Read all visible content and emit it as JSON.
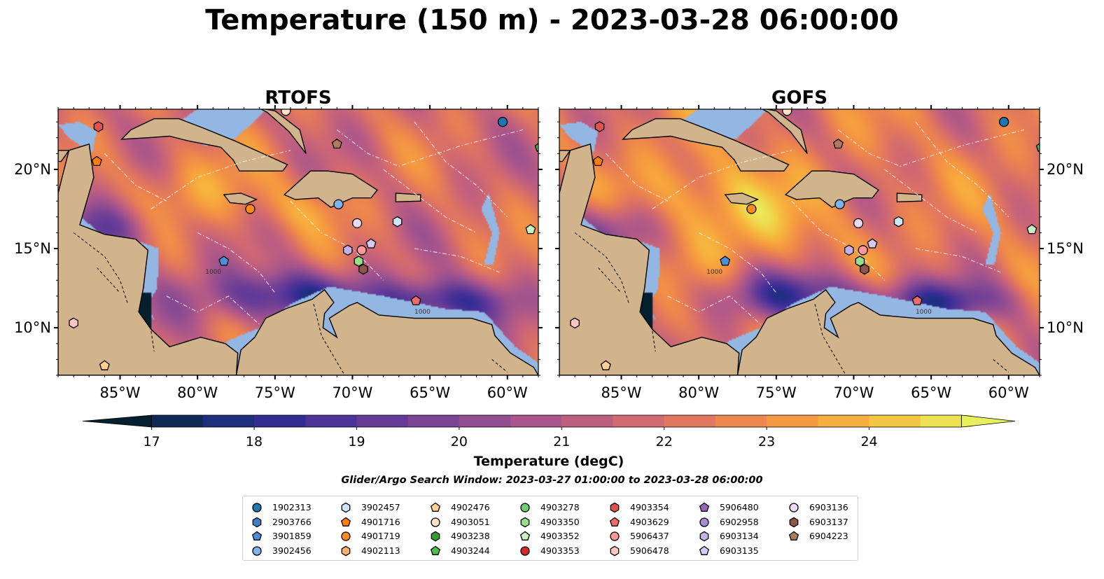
{
  "title": "Temperature (150 m) - 2023-03-28 06:00:00",
  "panels": [
    {
      "title": "RTOFS",
      "variant": "rtofs"
    },
    {
      "title": "GOFS",
      "variant": "gofs"
    }
  ],
  "colors": {
    "land": "#d2b48c",
    "shallow": "#94b6e2",
    "colormap": [
      "#04202f",
      "#0d2a54",
      "#1b2e7a",
      "#312d93",
      "#4a3298",
      "#623a97",
      "#774394",
      "#8d4c92",
      "#a3548d",
      "#b95c84",
      "#cc6676",
      "#dc7264",
      "#ea8152",
      "#f39244",
      "#f7a63e",
      "#f5bc3e",
      "#f0d549",
      "#e8ef5e"
    ]
  },
  "chart_data": {
    "type": "heatmap",
    "title": "Temperature (150 m) - 2023-03-28 06:00:00",
    "panels": [
      "RTOFS",
      "GOFS"
    ],
    "x_ticks": [
      "85°W",
      "80°W",
      "75°W",
      "70°W",
      "65°W",
      "60°W"
    ],
    "x_tick_values": [
      -85,
      -80,
      -75,
      -70,
      -65,
      -60
    ],
    "y_ticks": [
      "20°N",
      "15°N",
      "10°N"
    ],
    "y_tick_values": [
      20,
      15,
      10
    ],
    "xlim": [
      -89,
      -58
    ],
    "ylim": [
      7,
      23.8
    ],
    "colorbar": {
      "label": "Temperature (degC)",
      "ticks": [
        "17",
        "18",
        "19",
        "20",
        "21",
        "22",
        "23",
        "24"
      ],
      "tick_values": [
        17,
        18,
        19,
        20,
        21,
        22,
        23,
        24
      ],
      "range": [
        16.75,
        25.0
      ],
      "extend": "both"
    },
    "contour_label": "1000",
    "search_window": "Glider/Argo Search Window: 2023-03-27 01:00:00 to 2023-03-28 06:00:00",
    "floats": [
      {
        "id": "1902313",
        "marker": "circle",
        "color": "#1f77b4",
        "lon": -60.3,
        "lat": 23.0
      },
      {
        "id": "2903766",
        "marker": "hexagon",
        "color": "#3b7fc4",
        "lon": null,
        "lat": null
      },
      {
        "id": "3901859",
        "marker": "pentagon",
        "color": "#4a90d9",
        "lon": -78.3,
        "lat": 14.2
      },
      {
        "id": "3902456",
        "marker": "circle",
        "color": "#7fb2ea",
        "lon": -70.9,
        "lat": 17.8
      },
      {
        "id": "3902457",
        "marker": "hexagon",
        "color": "#cfe6fa",
        "lon": -67.1,
        "lat": 16.7
      },
      {
        "id": "4901716",
        "marker": "pentagon",
        "color": "#ff7f0e",
        "lon": -86.5,
        "lat": 20.5
      },
      {
        "id": "4901719",
        "marker": "circle",
        "color": "#ff8c1a",
        "lon": -76.6,
        "lat": 17.5
      },
      {
        "id": "4902113",
        "marker": "hexagon",
        "color": "#ffb067",
        "lon": null,
        "lat": null
      },
      {
        "id": "4902476",
        "marker": "pentagon",
        "color": "#ffcf94",
        "lon": -86.0,
        "lat": 7.6
      },
      {
        "id": "4903051",
        "marker": "circle",
        "color": "#ffe3c6",
        "lon": -74.3,
        "lat": 23.7
      },
      {
        "id": "4903238",
        "marker": "hexagon",
        "color": "#2ca02c",
        "lon": null,
        "lat": null
      },
      {
        "id": "4903244",
        "marker": "pentagon",
        "color": "#4cbf4c",
        "lon": -57.9,
        "lat": 21.4
      },
      {
        "id": "4903278",
        "marker": "circle",
        "color": "#6fcf6f",
        "lon": null,
        "lat": null
      },
      {
        "id": "4903350",
        "marker": "hexagon",
        "color": "#98df8a",
        "lon": -69.6,
        "lat": 14.2
      },
      {
        "id": "4903352",
        "marker": "pentagon",
        "color": "#c9f2c0",
        "lon": -58.5,
        "lat": 16.2
      },
      {
        "id": "4903353",
        "marker": "circle",
        "color": "#d62728",
        "lon": null,
        "lat": null
      },
      {
        "id": "4903354",
        "marker": "hexagon",
        "color": "#e0524f",
        "lon": -86.4,
        "lat": 22.7
      },
      {
        "id": "4903629",
        "marker": "pentagon",
        "color": "#ef6b6b",
        "lon": -65.9,
        "lat": 11.7
      },
      {
        "id": "5906437",
        "marker": "circle",
        "color": "#ff9896",
        "lon": -69.4,
        "lat": 14.9
      },
      {
        "id": "5906478",
        "marker": "hexagon",
        "color": "#ffc6c4",
        "lon": -88.0,
        "lat": 10.3
      },
      {
        "id": "5906480",
        "marker": "pentagon",
        "color": "#9467bd",
        "lon": null,
        "lat": null
      },
      {
        "id": "6902958",
        "marker": "circle",
        "color": "#a78bd1",
        "lon": null,
        "lat": null
      },
      {
        "id": "6903134",
        "marker": "hexagon",
        "color": "#c5b0e8",
        "lon": -70.3,
        "lat": 14.9
      },
      {
        "id": "6903135",
        "marker": "pentagon",
        "color": "#d8c8f5",
        "lon": -68.8,
        "lat": 15.3
      },
      {
        "id": "6903136",
        "marker": "circle",
        "color": "#ecdcf9",
        "lon": -69.7,
        "lat": 16.6
      },
      {
        "id": "6903137",
        "marker": "hexagon",
        "color": "#8c564b",
        "lon": -69.3,
        "lat": 13.7
      },
      {
        "id": "6904223",
        "marker": "pentagon",
        "color": "#b07a5e",
        "lon": -71.0,
        "lat": 21.6
      }
    ]
  }
}
